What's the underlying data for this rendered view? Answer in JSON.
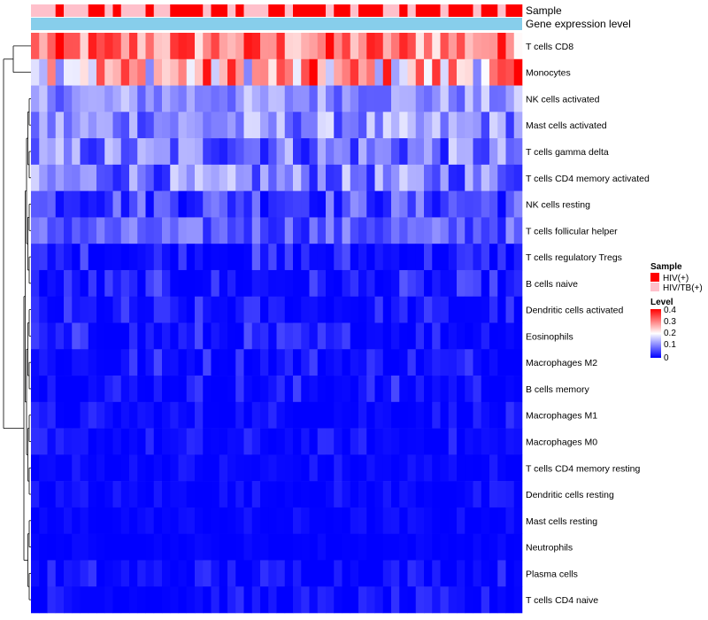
{
  "chart_data": {
    "type": "heatmap",
    "annotation_labels": {
      "sample": "Sample",
      "gene_expression": "Gene expression level"
    },
    "sample_groups": [
      "HIV(+)",
      "HIV/TB(+)"
    ],
    "sample_colors": {
      "HIV(+)": "#ff0000",
      "HIV/TB(+)": "#ffc0cb"
    },
    "gene_expression_color": "#87ceeb",
    "sample_annotation": [
      1,
      1,
      1,
      0,
      1,
      1,
      1,
      0,
      0,
      1,
      0,
      1,
      1,
      1,
      0,
      1,
      1,
      0,
      0,
      0,
      0,
      1,
      0,
      0,
      1,
      0,
      1,
      1,
      1,
      0,
      0,
      1,
      0,
      0,
      0,
      0,
      1,
      0,
      0,
      1,
      0,
      0,
      0,
      1,
      1,
      0,
      1,
      0,
      0,
      0,
      1,
      0,
      0,
      0,
      1,
      0,
      0,
      1,
      0,
      0
    ],
    "rows": [
      "T cells CD8",
      "Monocytes",
      "NK cells activated",
      "Mast cells activated",
      "T cells gamma delta",
      "T cells CD4 memory activated",
      "NK cells resting",
      "T cells follicular helper",
      "T cells regulatory  Tregs",
      "B cells naive",
      "Dendritic cells activated",
      "Eosinophils",
      "Macrophages M2",
      "B cells memory",
      "Macrophages M1",
      "Macrophages M0",
      "T cells CD4 memory resting",
      "Dendritic cells resting",
      "Mast cells resting",
      "Neutrophils",
      "Plasma cells",
      "T cells CD4 naive"
    ],
    "n_columns": 60,
    "row_value_ranges": [
      [
        0.2,
        0.4
      ],
      [
        0.1,
        0.4
      ],
      [
        0.06,
        0.17
      ],
      [
        0.04,
        0.18
      ],
      [
        0.01,
        0.17
      ],
      [
        0.02,
        0.17
      ],
      [
        0.0,
        0.12
      ],
      [
        0.02,
        0.12
      ],
      [
        0.0,
        0.08
      ],
      [
        0.0,
        0.07
      ],
      [
        0.0,
        0.06
      ],
      [
        0.0,
        0.07
      ],
      [
        0.0,
        0.07
      ],
      [
        0.0,
        0.06
      ],
      [
        0.0,
        0.04
      ],
      [
        0.0,
        0.04
      ],
      [
        0.0,
        0.03
      ],
      [
        0.0,
        0.03
      ],
      [
        0.0,
        0.02
      ],
      [
        0.0,
        0.01
      ],
      [
        0.0,
        0.05
      ],
      [
        0.0,
        0.04
      ]
    ],
    "legend": {
      "sample_title": "Sample",
      "level_title": "Level",
      "level_ticks": [
        "0.4",
        "0.3",
        "0.2",
        "0.1",
        "0"
      ],
      "level_min": 0,
      "level_max": 0.4,
      "colors": {
        "low": "#0000ff",
        "mid": "#ffffff",
        "high": "#ff0000"
      }
    }
  }
}
